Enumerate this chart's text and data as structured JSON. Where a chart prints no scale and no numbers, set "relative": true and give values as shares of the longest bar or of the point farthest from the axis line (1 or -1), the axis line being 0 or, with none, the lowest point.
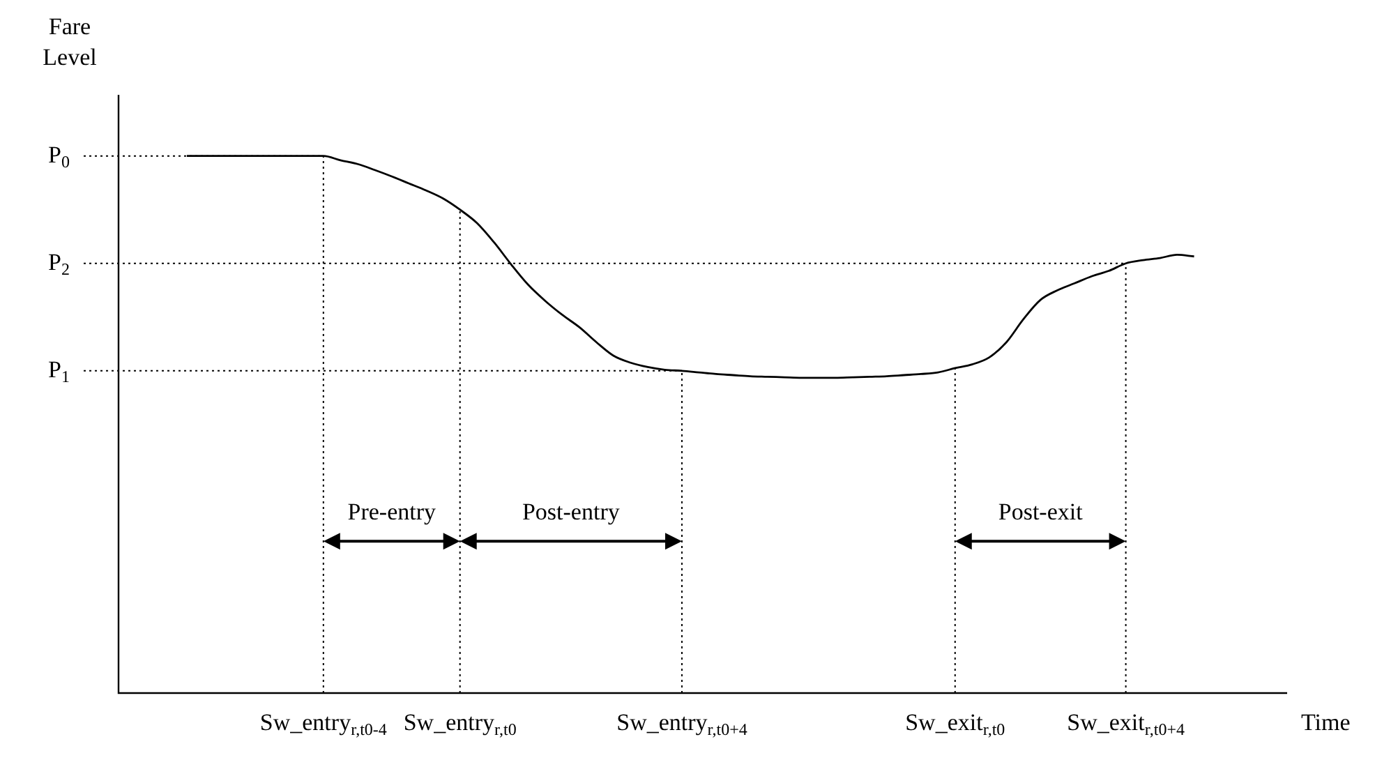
{
  "chart_data": {
    "type": "line",
    "relative": true,
    "ylabel": "Fare Level",
    "xlabel": "Time",
    "categories": [
      null,
      null,
      null,
      null,
      null,
      null,
      null,
      null,
      null,
      null,
      null,
      null,
      "Sw_entry$_{r,t0-4}$",
      null,
      null,
      null,
      null,
      null,
      null,
      null,
      "Sw_entry$_{r,t0}$",
      null,
      null,
      null,
      null,
      null,
      null,
      null,
      null,
      null,
      null,
      null,
      null,
      "Sw_entry$_{r,t0+4}$",
      null,
      null,
      null,
      null,
      null,
      null,
      null,
      null,
      null,
      null,
      null,
      null,
      null,
      null,
      null,
      "Sw_exit$_{r,t0}$",
      null,
      null,
      null,
      null,
      null,
      null,
      null,
      null,
      null,
      "Sw_exit$_{r,t0+4}$",
      null,
      null,
      null,
      null,
      null,
      null,
      null
    ],
    "series": [
      {
        "color": "#000000",
        "values": [
          null,
          null,
          null,
          null,
          1.0,
          1.0,
          1.0,
          1.0,
          1.0,
          1.0,
          1.0,
          1.0,
          1.0,
          0.992,
          0.985,
          0.974,
          0.962,
          0.949,
          0.936,
          0.921,
          0.9,
          0.875,
          0.839,
          0.798,
          0.76,
          0.73,
          0.704,
          0.681,
          0.653,
          0.628,
          0.615,
          0.607,
          0.602,
          0.6,
          0.597,
          0.594,
          0.592,
          0.59,
          0.589,
          0.588,
          0.587,
          0.587,
          0.587,
          0.588,
          0.589,
          0.59,
          0.592,
          0.594,
          0.597,
          0.605,
          0.612,
          0.625,
          0.653,
          0.696,
          0.732,
          0.75,
          0.763,
          0.776,
          0.786,
          0.8,
          0.806,
          0.81,
          0.816,
          0.813,
          null,
          null,
          null
        ]
      }
    ],
    "ref_lines": [
      {
        "axis": "y",
        "value": 1.0,
        "label": "P$_{0}$",
        "color": "#000000",
        "line_style": "dotted"
      },
      {
        "axis": "y",
        "value": 0.8,
        "label": "P$_{2}$",
        "color": "#000000",
        "line_style": "dotted"
      },
      {
        "axis": "y",
        "value": 0.6,
        "label": "P$_{1}$",
        "color": "#000000",
        "line_style": "dotted"
      },
      {
        "axis": "x",
        "value": "Sw_entry$_{r,t0-4}$",
        "color": "#000000",
        "line_style": "dotted"
      },
      {
        "axis": "x",
        "value": "Sw_entry$_{r,t0}$",
        "color": "#000000",
        "line_style": "dotted"
      },
      {
        "axis": "x",
        "value": "Sw_entry$_{r,t0+4}$",
        "color": "#000000",
        "line_style": "dotted"
      },
      {
        "axis": "x",
        "value": "Sw_exit$_{r,t0}$",
        "color": "#000000",
        "line_style": "dotted"
      },
      {
        "axis": "x",
        "value": "Sw_exit$_{r,t0+4}$",
        "color": "#000000",
        "line_style": "dotted"
      }
    ],
    "annotations": [
      {
        "text": "Pre-entry",
        "x": "Sw_entry$_{r,t0-4}$"
      },
      {
        "text": "Post-entry",
        "x": "Sw_entry$_{r,t0}$"
      },
      {
        "text": "Post-exit",
        "x": "Sw_exit$_{r,t0}$"
      }
    ],
    "marker": "none",
    "line_style": "solid"
  }
}
